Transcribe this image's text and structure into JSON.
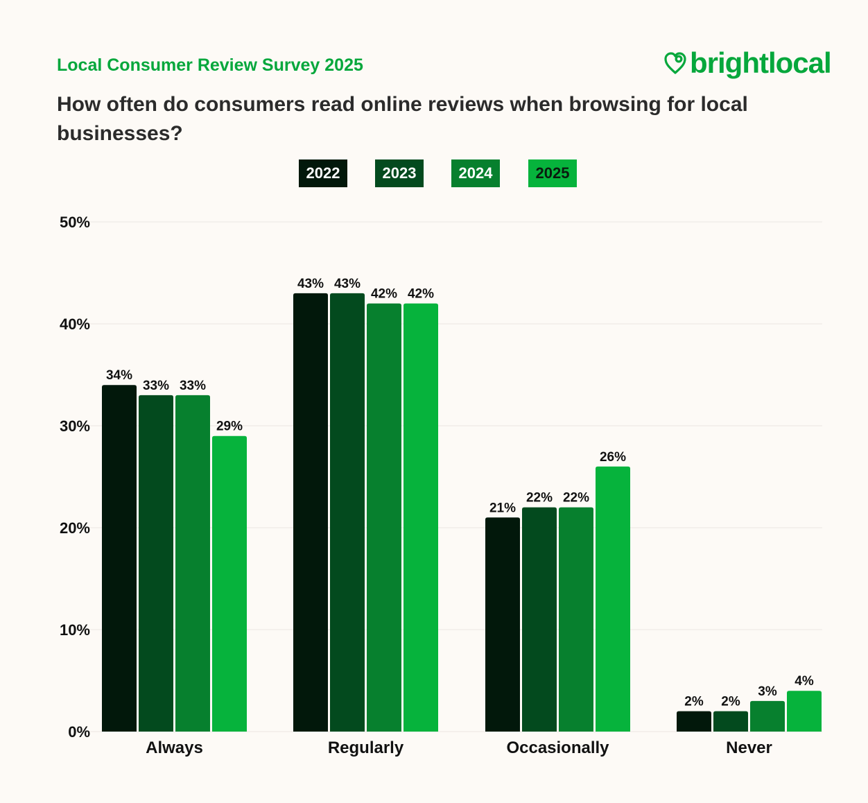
{
  "header": {
    "survey_title": "Local Consumer Review Survey 2025",
    "brand_name": "brightlocal",
    "brand_icon": "heart-pin-icon",
    "question": "How often do consumers read online reviews when browsing for local businesses?"
  },
  "colors": {
    "background": "#fdfaf6",
    "brand_green": "#06a73c",
    "title_text": "#2b2b2b",
    "gridline": "#ebe7e1"
  },
  "chart_data": {
    "type": "bar",
    "title": "How often do consumers read online reviews when browsing for local businesses?",
    "xlabel": "",
    "ylabel": "",
    "ylim": [
      0,
      50
    ],
    "yticks": [
      "0%",
      "10%",
      "20%",
      "30%",
      "40%",
      "50%"
    ],
    "grid": true,
    "legend_position": "top-center",
    "categories": [
      "Always",
      "Regularly",
      "Occasionally",
      "Never"
    ],
    "series": [
      {
        "name": "2022",
        "color": "#02180b",
        "values": [
          34,
          43,
          21,
          2
        ],
        "labels": [
          "34%",
          "43%",
          "21%",
          "2%"
        ]
      },
      {
        "name": "2023",
        "color": "#034a1e",
        "values": [
          33,
          43,
          22,
          2
        ],
        "labels": [
          "33%",
          "43%",
          "22%",
          "2%"
        ]
      },
      {
        "name": "2024",
        "color": "#07802e",
        "values": [
          33,
          42,
          22,
          3
        ],
        "labels": [
          "33%",
          "42%",
          "22%",
          "3%"
        ]
      },
      {
        "name": "2025",
        "color": "#06b33c",
        "values": [
          29,
          42,
          26,
          4
        ],
        "labels": [
          "29%",
          "42%",
          "26%",
          "4%"
        ]
      }
    ]
  }
}
